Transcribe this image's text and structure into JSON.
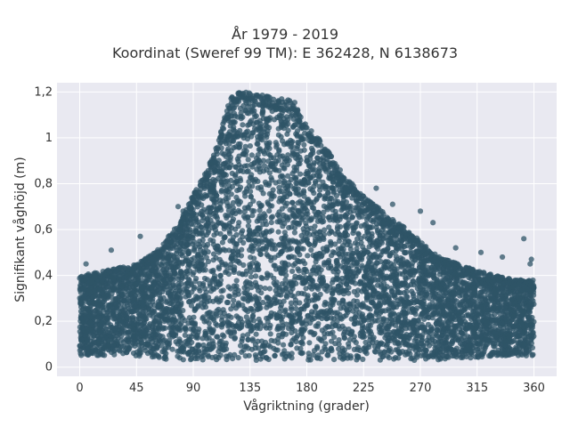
{
  "title": {
    "line1": "År 1979 - 2019",
    "line2": "Koordinat (Sweref 99 TM): E 362428, N 6138673"
  },
  "chart_data": {
    "type": "scatter",
    "title": "År 1979 - 2019 / Koordinat (Sweref 99 TM): E 362428, N 6138673",
    "xlabel": "Vågriktning (grader)",
    "ylabel": "Signifikant våghöjd (m)",
    "xlim": [
      -18,
      378
    ],
    "ylim": [
      -0.04,
      1.24
    ],
    "xticks": [
      0,
      45,
      90,
      135,
      180,
      225,
      270,
      315,
      360
    ],
    "xtick_labels": [
      "0",
      "45",
      "90",
      "135",
      "180",
      "225",
      "270",
      "315",
      "360"
    ],
    "yticks": [
      0,
      0.2,
      0.4,
      0.6,
      0.8,
      1,
      1.2
    ],
    "ytick_labels": [
      "0",
      "0,2",
      "0,4",
      "0,6",
      "0,8",
      "1",
      "1,2"
    ],
    "grid": true,
    "legend": "none",
    "colors": {
      "marker": "#2f5467",
      "plot_bg": "#e9e9f1",
      "grid": "#ffffff"
    },
    "series": [
      {
        "marker_color": "#2f5467",
        "envelope": {
          "direction": [
            0,
            20,
            45,
            60,
            75,
            90,
            100,
            110,
            115,
            120,
            125,
            130,
            140,
            150,
            160,
            170,
            175,
            180,
            190,
            200,
            210,
            225,
            240,
            255,
            270,
            285,
            300,
            315,
            330,
            345,
            360
          ],
          "min_height": [
            0.05,
            0.05,
            0.05,
            0.04,
            0.03,
            0.03,
            0.03,
            0.03,
            0.03,
            0.03,
            0.03,
            0.03,
            0.03,
            0.03,
            0.03,
            0.03,
            0.03,
            0.03,
            0.03,
            0.03,
            0.03,
            0.03,
            0.03,
            0.03,
            0.03,
            0.03,
            0.04,
            0.04,
            0.05,
            0.05,
            0.05
          ],
          "max_height": [
            0.4,
            0.42,
            0.45,
            0.5,
            0.6,
            0.75,
            0.85,
            0.98,
            1.1,
            1.18,
            1.2,
            1.2,
            1.19,
            1.18,
            1.17,
            1.16,
            1.1,
            1.05,
            1.0,
            0.92,
            0.83,
            0.75,
            0.68,
            0.62,
            0.55,
            0.48,
            0.45,
            0.42,
            0.4,
            0.38,
            0.38
          ]
        },
        "outliers": [
          {
            "x": 5,
            "y": 0.45
          },
          {
            "x": 25,
            "y": 0.51
          },
          {
            "x": 48,
            "y": 0.57
          },
          {
            "x": 72,
            "y": 0.57
          },
          {
            "x": 78,
            "y": 0.7
          },
          {
            "x": 82,
            "y": 0.68
          },
          {
            "x": 198,
            "y": 0.93
          },
          {
            "x": 202,
            "y": 0.86
          },
          {
            "x": 235,
            "y": 0.78
          },
          {
            "x": 248,
            "y": 0.71
          },
          {
            "x": 270,
            "y": 0.68
          },
          {
            "x": 280,
            "y": 0.63
          },
          {
            "x": 298,
            "y": 0.52
          },
          {
            "x": 318,
            "y": 0.5
          },
          {
            "x": 335,
            "y": 0.48
          },
          {
            "x": 352,
            "y": 0.56
          },
          {
            "x": 358,
            "y": 0.47
          },
          {
            "x": 357,
            "y": 0.45
          }
        ]
      }
    ]
  }
}
